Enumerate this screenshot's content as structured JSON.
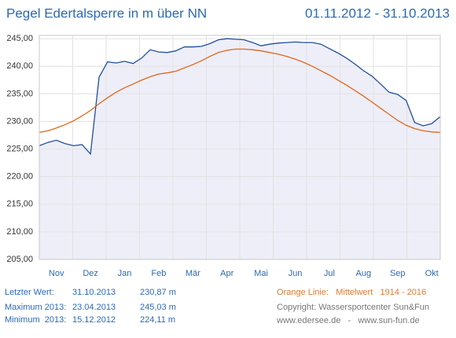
{
  "chart_data": {
    "type": "line",
    "title": "Pegel Edertalsperre in m über NN",
    "subtitle": "01.11.2012 - 31.10.2013",
    "categories": [
      null,
      null,
      "Nov",
      null,
      null,
      null,
      "Dez",
      null,
      null,
      null,
      "Jan",
      null,
      null,
      null,
      "Feb",
      null,
      null,
      null,
      "Mär",
      null,
      null,
      null,
      "Apr",
      null,
      null,
      null,
      "Mai",
      null,
      null,
      null,
      "Jun",
      null,
      null,
      null,
      "Jul",
      null,
      null,
      null,
      "Aug",
      null,
      null,
      null,
      "Sep",
      null,
      null,
      null,
      "Okt",
      null
    ],
    "series": [
      {
        "color": "#1f4f9e",
        "fill": "#eeeef8",
        "values": [
          225.6,
          226.2,
          226.6,
          226.0,
          225.6,
          225.8,
          224.1,
          238.0,
          240.8,
          240.6,
          240.9,
          240.5,
          241.5,
          243.0,
          242.6,
          242.5,
          242.8,
          243.5,
          243.5,
          243.6,
          244.1,
          244.8,
          245.0,
          244.9,
          244.8,
          244.3,
          243.7,
          244.0,
          244.2,
          244.3,
          244.4,
          244.3,
          244.3,
          244.0,
          243.2,
          242.4,
          241.5,
          240.4,
          239.2,
          238.2,
          236.8,
          235.3,
          234.9,
          233.8,
          229.8,
          229.2,
          229.6,
          230.87
        ]
      },
      {
        "color": "#e0661a",
        "values": [
          228.0,
          228.3,
          228.8,
          229.4,
          230.1,
          231.0,
          232.0,
          233.2,
          234.3,
          235.3,
          236.1,
          236.8,
          237.5,
          238.1,
          238.6,
          238.8,
          239.1,
          239.7,
          240.3,
          241.0,
          241.8,
          242.5,
          242.9,
          243.1,
          243.1,
          243.0,
          242.8,
          242.5,
          242.2,
          241.8,
          241.3,
          240.7,
          240.0,
          239.2,
          238.4,
          237.5,
          236.6,
          235.6,
          234.6,
          233.5,
          232.4,
          231.3,
          230.2,
          229.3,
          228.7,
          228.3,
          228.1,
          228.0
        ]
      }
    ],
    "ylim": [
      205,
      245.6
    ],
    "yticks": [
      {
        "value": 205,
        "label": "205,00"
      },
      {
        "value": 210,
        "label": "210,00"
      },
      {
        "value": 215,
        "label": "215,00"
      },
      {
        "value": 220,
        "label": "220,00"
      },
      {
        "value": 225,
        "label": "225,00"
      },
      {
        "value": 230,
        "label": "230,00"
      },
      {
        "value": 235,
        "label": "235,00"
      },
      {
        "value": 240,
        "label": "240,00"
      },
      {
        "value": 245,
        "label": "245,00"
      }
    ],
    "grid": true,
    "stats": [
      {
        "label": "Letzter Wert:",
        "date": "31.10.2013",
        "value": "230,87 m"
      },
      {
        "label": "Maximum 2013:",
        "date": "23.04.2013",
        "value": "245,03 m"
      },
      {
        "label": "Minimum  2013:",
        "date": "15.12.2012",
        "value": "224,11 m"
      }
    ],
    "legend_note": "Orange Linie:   Mittelwert   1914 - 2016",
    "copyright": "Copyright: Wassersportcenter Sun&Fun",
    "links": "www.edersee.de   -   www.sun-fun.de"
  }
}
